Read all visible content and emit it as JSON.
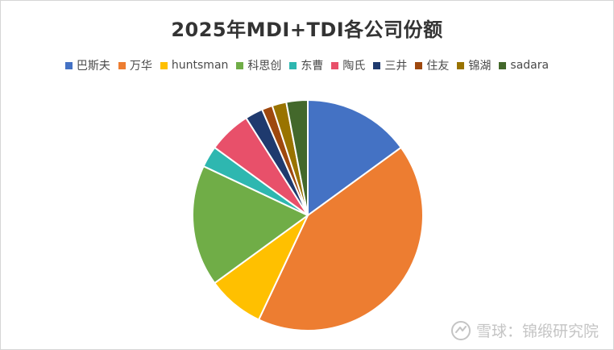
{
  "watermark": {
    "text": "雪球：锦缎研究院"
  },
  "chart_data": {
    "type": "pie",
    "title": "2025年MDI+TDI各公司份额",
    "legend": "top",
    "categories": [
      "巴斯夫",
      "万华",
      "huntsman",
      "科思创",
      "东曹",
      "陶氏",
      "三井",
      "住友",
      "锦湖",
      "sadara"
    ],
    "values": [
      15.0,
      42.0,
      8.0,
      17.0,
      3.0,
      6.0,
      2.5,
      1.5,
      2.0,
      3.0
    ],
    "colors": [
      "#4472C4",
      "#ED7D31",
      "#FFC000",
      "#70AD47",
      "#2EB7B0",
      "#E8506A",
      "#1F3A6E",
      "#9E480E",
      "#997300",
      "#43682B"
    ]
  }
}
